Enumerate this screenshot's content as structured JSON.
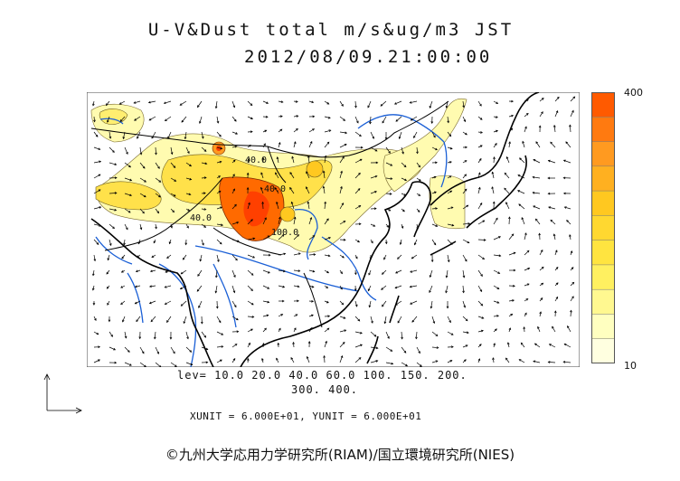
{
  "title": {
    "line1": "U-V&Dust total m/s&ug/m3 JST",
    "line2": "2012/08/09.21:00:00"
  },
  "colorbar": {
    "max_label": "400",
    "min_label": "10",
    "colors": [
      "#ff5a00",
      "#ff7a10",
      "#ff9a20",
      "#ffb020",
      "#ffc820",
      "#ffd830",
      "#ffe440",
      "#fff060",
      "#fff890",
      "#ffffc0",
      "#ffffe0"
    ]
  },
  "contour_labels": [
    "40.0",
    "40.0",
    "40.0",
    "100.0"
  ],
  "levels": {
    "line1": "lev= 10.0 20.0 40.0 60.0 100. 150. 200.",
    "line2": "300. 400."
  },
  "units_text": "XUNIT = 6.000E+01, YUNIT = 6.000E+01",
  "credit": "©九州大学応用力学研究所(RIAM)/国立環境研究所(NIES)",
  "colors": {
    "coast": "#000000",
    "rivers": "#1a5fd6",
    "dust_low": "#fffbb0",
    "dust_mid": "#ffe14a",
    "dust_high": "#ff6a00"
  }
}
